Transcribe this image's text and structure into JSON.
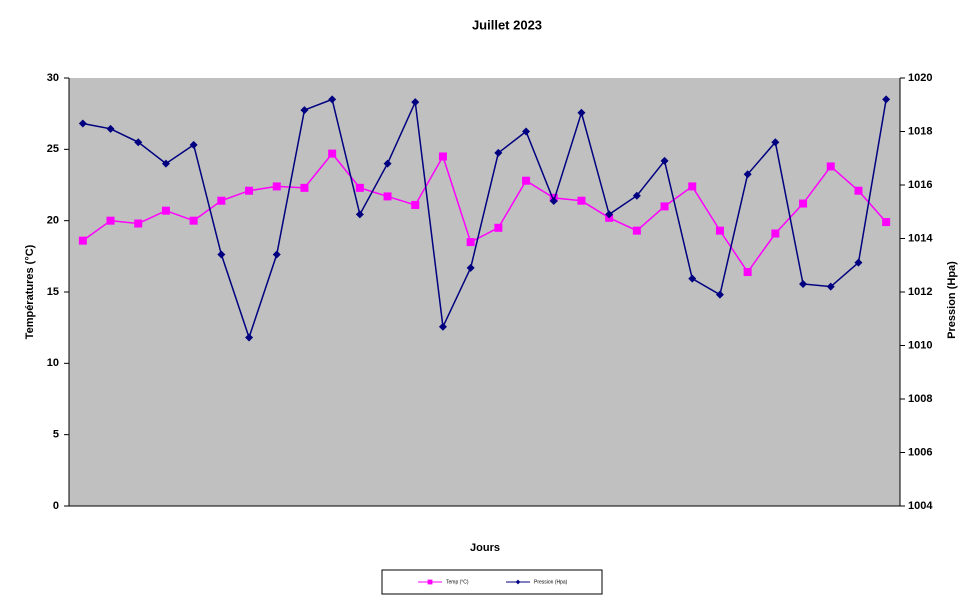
{
  "chart_data": {
    "type": "line",
    "title": "Juillet 2023",
    "x_label": "Jours",
    "y_label": "Températures (°C)",
    "y2_label": "Pression (Hpa)",
    "categories": [
      null,
      null,
      null,
      null,
      null,
      null,
      null,
      null,
      null,
      null,
      null,
      null,
      null,
      null,
      null,
      null,
      null,
      null,
      null,
      null,
      null,
      null,
      null,
      null,
      null,
      null,
      null,
      null,
      null,
      null
    ],
    "series": [
      {
        "name": "Temp (°C)",
        "color": "#ff00ff",
        "marker": "square",
        "values": [
          18.6,
          20.0,
          19.8,
          20.7,
          20.0,
          21.4,
          22.1,
          22.4,
          22.3,
          24.7,
          22.3,
          21.7,
          21.1,
          24.5,
          18.5,
          19.5,
          22.8,
          21.6,
          21.4,
          20.2,
          19.3,
          21.0,
          22.4,
          19.3,
          16.4,
          19.1,
          21.2,
          23.8,
          22.1,
          19.9
        ]
      },
      {
        "name": "Pression (Hpa)",
        "color": "#000080",
        "marker": "diamond",
        "axis": "y2",
        "values": [
          1018.3,
          1018.1,
          1017.6,
          1016.8,
          1017.5,
          1013.4,
          1010.3,
          1013.4,
          1018.8,
          1019.2,
          1014.9,
          1016.8,
          1019.1,
          1010.7,
          1012.9,
          1017.2,
          1018.0,
          1015.4,
          1018.7,
          1014.9,
          1015.6,
          1016.9,
          1012.5,
          1011.9,
          1016.4,
          1017.6,
          1012.3,
          1012.2,
          1013.1,
          1019.2
        ]
      }
    ],
    "ylim": [
      0,
      30
    ],
    "yticks": [
      0,
      5,
      10,
      15,
      20,
      25,
      30
    ],
    "y2lim": [
      1004,
      1020
    ],
    "y2ticks": [
      1004,
      1006,
      1008,
      1010,
      1012,
      1014,
      1016,
      1018,
      1020
    ],
    "plot_background": "#c0c0c0",
    "legend": "bottom"
  }
}
